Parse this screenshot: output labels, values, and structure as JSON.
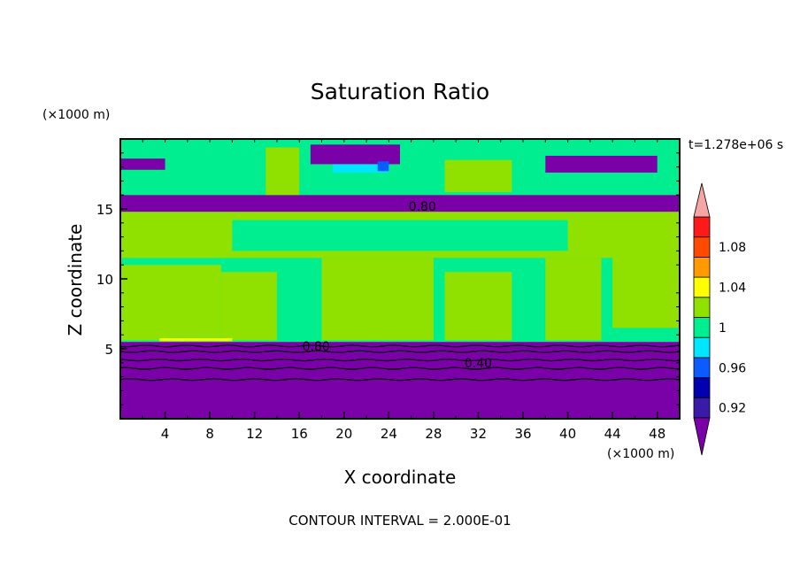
{
  "chart_data": {
    "type": "heatmap",
    "title": "Saturation Ratio",
    "xlabel": "X coordinate",
    "ylabel": "Z coordinate",
    "x_unit": "(×1000 m)",
    "y_unit": "(×1000 m)",
    "time_label": "t=1.278e+06 s",
    "footer": "CONTOUR INTERVAL = 2.000E-01",
    "xlim": [
      0,
      50
    ],
    "ylim": [
      0,
      20
    ],
    "x_ticks": [
      4,
      8,
      12,
      16,
      20,
      24,
      28,
      32,
      36,
      40,
      44,
      48
    ],
    "y_ticks": [
      5,
      10,
      15
    ],
    "contour_labels": [
      {
        "text": "0.80",
        "x": 27.0,
        "y": 15.2
      },
      {
        "text": "0.80",
        "x": 17.5,
        "y": 5.2
      },
      {
        "text": "0.40",
        "x": 32.0,
        "y": 4.0
      }
    ],
    "colorbar": {
      "labels": [
        "1.08",
        "1.04",
        "1",
        "0.96",
        "0.92"
      ],
      "levels": [
        0.92,
        0.94,
        0.96,
        0.98,
        1.0,
        1.02,
        1.04,
        1.06,
        1.08,
        1.1
      ],
      "colors": {
        "below": "#7a00a8",
        "l0": "#3a1aa8",
        "l1": "#0000b0",
        "l2": "#0a5cff",
        "l3": "#00e6ff",
        "l4": "#00ee90",
        "l5": "#90e000",
        "l6": "#ffff00",
        "l7": "#ff9a00",
        "l8": "#ff4a00",
        "l9": "#ff1a1a",
        "above": "#f4a6a6"
      }
    },
    "regions": [
      {
        "level": "below",
        "x0": 0,
        "x1": 50,
        "z0": 0,
        "z1": 5.5
      },
      {
        "level": "l4",
        "x0": 0,
        "x1": 50,
        "z0": 5.5,
        "z1": 14.0
      },
      {
        "level": "l5",
        "x0": 0,
        "x1": 9,
        "z0": 5.6,
        "z1": 11.0
      },
      {
        "level": "l5",
        "x0": 9,
        "x1": 14,
        "z0": 5.6,
        "z1": 10.5
      },
      {
        "level": "l5",
        "x0": 18,
        "x1": 28,
        "z0": 5.6,
        "z1": 11.5
      },
      {
        "level": "l5",
        "x0": 29,
        "x1": 35,
        "z0": 5.6,
        "z1": 10.5
      },
      {
        "level": "l5",
        "x0": 38,
        "x1": 43,
        "z0": 5.6,
        "z1": 11.5
      },
      {
        "level": "l5",
        "x0": 44,
        "x1": 50,
        "z0": 6.5,
        "z1": 14.0
      },
      {
        "level": "l5",
        "x0": 0,
        "x1": 50,
        "z0": 11.5,
        "z1": 16.2
      },
      {
        "level": "l4",
        "x0": 10,
        "x1": 40,
        "z0": 12.0,
        "z1": 14.2
      },
      {
        "level": "below",
        "x0": 0,
        "x1": 50,
        "z0": 14.8,
        "z1": 16.0
      },
      {
        "level": "l4",
        "x0": 0,
        "x1": 50,
        "z0": 16.0,
        "z1": 20.0
      },
      {
        "level": "l5",
        "x0": 13,
        "x1": 16,
        "z0": 16.0,
        "z1": 19.4
      },
      {
        "level": "l5",
        "x0": 29,
        "x1": 35,
        "z0": 16.2,
        "z1": 18.5
      },
      {
        "level": "below",
        "x0": 17,
        "x1": 25,
        "z0": 18.2,
        "z1": 19.6
      },
      {
        "level": "below",
        "x0": 38,
        "x1": 48,
        "z0": 17.6,
        "z1": 18.8
      },
      {
        "level": "below",
        "x0": 0,
        "x1": 4,
        "z0": 17.8,
        "z1": 18.6
      },
      {
        "level": "l3",
        "x0": 19,
        "x1": 24,
        "z0": 17.6,
        "z1": 18.2
      },
      {
        "level": "l2",
        "x0": 23,
        "x1": 24,
        "z0": 17.7,
        "z1": 18.4
      },
      {
        "level": "l6",
        "x0": 3.5,
        "x1": 10,
        "z0": 5.55,
        "z1": 5.75
      }
    ],
    "contour_lines": [
      {
        "z": 2.8
      },
      {
        "z": 3.6
      },
      {
        "z": 4.2
      },
      {
        "z": 4.8
      },
      {
        "z": 5.2
      }
    ]
  }
}
